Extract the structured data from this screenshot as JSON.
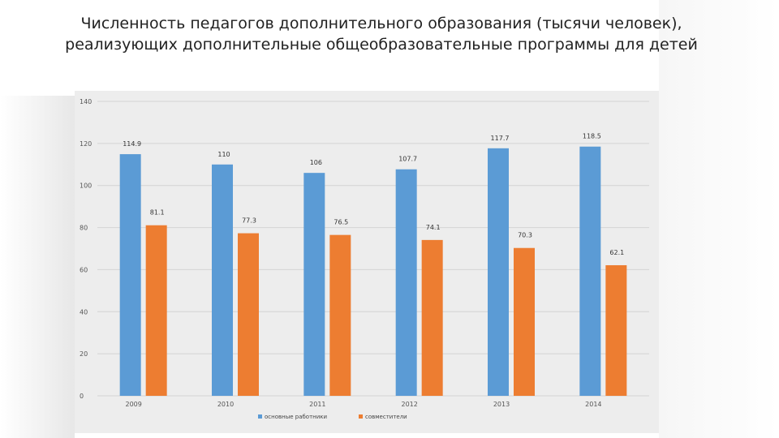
{
  "title": {
    "line1": "Численность педагогов дополнительного образования (тысячи человек),",
    "line2": "реализующих дополнительные общеобразовательные программы для детей"
  },
  "chart_data": {
    "type": "bar",
    "categories": [
      "2009",
      "2010",
      "2011",
      "2012",
      "2013",
      "2014"
    ],
    "series": [
      {
        "name": "основные работники",
        "values": [
          114.9,
          110,
          106,
          107.7,
          117.7,
          118.5
        ],
        "color": "#5b9bd5"
      },
      {
        "name": "совместители",
        "values": [
          81.1,
          77.3,
          76.5,
          74.1,
          70.3,
          62.1
        ],
        "color": "#ed7d31"
      }
    ],
    "value_labels": [
      [
        "114.9",
        "110",
        "106",
        "107.7",
        "117.7",
        "118.5"
      ],
      [
        "81.1",
        "77.3",
        "76.5",
        "74.1",
        "70.3",
        "62.1"
      ]
    ],
    "yticks": [
      "0",
      "20",
      "40",
      "60",
      "80",
      "100",
      "120",
      "140"
    ],
    "ylim": [
      0,
      140
    ],
    "grid": true,
    "legend": "bottom",
    "xlabel": "",
    "ylabel": ""
  }
}
